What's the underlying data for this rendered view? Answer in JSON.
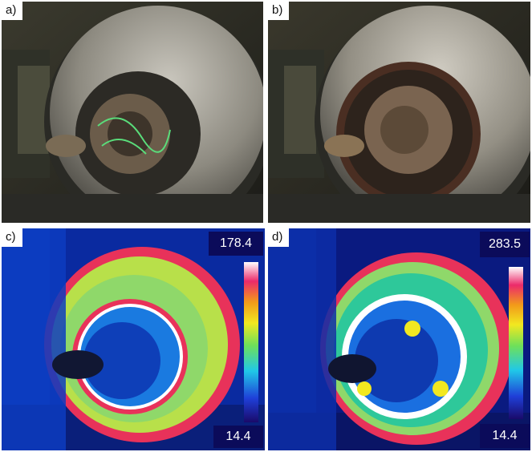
{
  "panels": {
    "a": {
      "label": "a)"
    },
    "b": {
      "label": "b)"
    },
    "c": {
      "label": "c)",
      "scale_max": "178.4",
      "scale_min": "14.4"
    },
    "d": {
      "label": "d)",
      "scale_max": "283.5",
      "scale_min": "14.4"
    }
  },
  "colors": {
    "scale_box_background": "#0b0b5a",
    "thermal_background": "#0a2aa0",
    "hot_ring": "#e8325a",
    "warm_disc": "#8fd86a"
  },
  "icon_names": [
    "brake-disc-photo",
    "thermal-colorbar"
  ]
}
